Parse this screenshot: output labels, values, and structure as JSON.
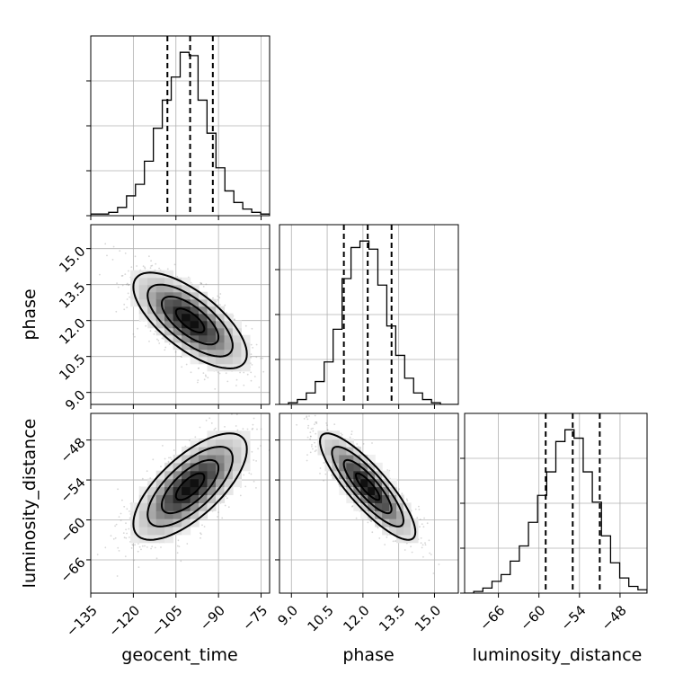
{
  "chart_data": {
    "type": "corner",
    "parameters": [
      "geocent_time",
      "phase",
      "luminosity_distance"
    ],
    "axis_labels": {
      "x": [
        "geocent_time",
        "phase",
        "luminosity_distance"
      ],
      "y": [
        "phase",
        "luminosity_distance"
      ]
    },
    "ticks": {
      "geocent_time": {
        "values": [
          -135,
          -120,
          -105,
          -90,
          -75
        ],
        "labels": [
          "−135",
          "−120",
          "−105",
          "−90",
          "−75"
        ],
        "range": [
          -135,
          -72
        ]
      },
      "phase": {
        "values": [
          9.0,
          10.5,
          12.0,
          13.5,
          15.0
        ],
        "labels": [
          "9.0",
          "10.5",
          "12.0",
          "13.5",
          "15.0"
        ],
        "range": [
          8.5,
          16.0
        ]
      },
      "luminosity_distance": {
        "values": [
          -66,
          -60,
          -54,
          -48
        ],
        "labels": [
          "−66",
          "−60",
          "−54",
          "−48"
        ],
        "range": [
          -71,
          -44
        ]
      }
    },
    "histograms": [
      {
        "parameter": "geocent_time",
        "bin_edges": [
          -135,
          -131.85,
          -128.7,
          -125.55,
          -122.4,
          -119.25,
          -116.1,
          -112.95,
          -109.8,
          -106.65,
          -103.5,
          -100.35,
          -97.2,
          -94.05,
          -90.9,
          -87.75,
          -84.6,
          -81.45,
          -78.3,
          -75.15,
          -72
        ],
        "counts": [
          1,
          1,
          2,
          5,
          12,
          19,
          33,
          53,
          70,
          84,
          99,
          97,
          70,
          50,
          29,
          15,
          8,
          4,
          2,
          1
        ],
        "quantiles": [
          -108.0,
          -100.0,
          -92.0
        ]
      },
      {
        "parameter": "phase",
        "bin_edges": [
          8.5,
          8.875,
          9.25,
          9.625,
          10.0,
          10.375,
          10.75,
          11.125,
          11.5,
          11.875,
          12.25,
          12.625,
          13.0,
          13.375,
          13.75,
          14.125,
          14.5,
          14.875,
          15.25,
          15.625,
          16.0
        ],
        "counts": [
          0,
          1,
          3,
          7,
          14,
          26,
          46,
          77,
          96,
          100,
          95,
          73,
          48,
          30,
          16,
          7,
          3,
          1,
          0,
          0
        ],
        "quantiles": [
          11.2,
          12.2,
          13.2
        ]
      },
      {
        "parameter": "luminosity_distance",
        "bin_edges": [
          -71,
          -69.65,
          -68.3,
          -66.95,
          -65.6,
          -64.25,
          -62.9,
          -61.55,
          -60.2,
          -58.85,
          -57.5,
          -56.15,
          -54.8,
          -53.45,
          -52.1,
          -50.75,
          -49.4,
          -48.05,
          -46.7,
          -45.35,
          -44
        ],
        "counts": [
          0,
          1,
          3,
          7,
          11,
          19,
          28,
          42,
          58,
          72,
          90,
          97,
          92,
          72,
          54,
          34,
          18,
          9,
          4,
          2
        ],
        "quantiles": [
          -59.0,
          -55.0,
          -51.0
        ]
      }
    ],
    "panels_2d": [
      {
        "x": "geocent_time",
        "y": "phase",
        "center": [
          -100,
          12.0
        ],
        "sd": [
          10,
          1.0
        ],
        "correlation": -0.7,
        "contour_levels_sigma": [
          0.5,
          1.0,
          1.5,
          2.0
        ]
      },
      {
        "x": "geocent_time",
        "y": "luminosity_distance",
        "center": [
          -100,
          -55.0
        ],
        "sd": [
          10,
          4.0
        ],
        "correlation": 0.7,
        "contour_levels_sigma": [
          0.5,
          1.0,
          1.5,
          2.0
        ]
      },
      {
        "x": "phase",
        "y": "luminosity_distance",
        "center": [
          12.2,
          -55.0
        ],
        "sd": [
          1.0,
          4.0
        ],
        "correlation": -0.85,
        "contour_levels_sigma": [
          0.5,
          1.0,
          1.5,
          2.0
        ]
      }
    ],
    "grid": true
  }
}
